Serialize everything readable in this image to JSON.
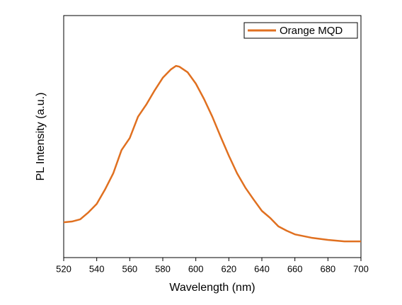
{
  "chart_data": {
    "type": "line",
    "x_label": "Wavelength (nm)",
    "y_label": "PL Intensity (a.u.)",
    "x": [
      520,
      525,
      530,
      535,
      540,
      545,
      550,
      555,
      560,
      565,
      570,
      575,
      580,
      585,
      588,
      590,
      595,
      600,
      605,
      610,
      615,
      620,
      625,
      630,
      635,
      640,
      645,
      650,
      655,
      660,
      670,
      680,
      690,
      700
    ],
    "series": [
      {
        "name": "Orange MQD",
        "color": "#e07020",
        "values": [
          0.146,
          0.149,
          0.158,
          0.187,
          0.222,
          0.281,
          0.348,
          0.444,
          0.494,
          0.582,
          0.632,
          0.69,
          0.743,
          0.778,
          0.792,
          0.789,
          0.766,
          0.719,
          0.655,
          0.582,
          0.5,
          0.421,
          0.348,
          0.289,
          0.24,
          0.193,
          0.164,
          0.129,
          0.111,
          0.096,
          0.082,
          0.073,
          0.067,
          0.067
        ]
      }
    ],
    "xlim": [
      520,
      700
    ],
    "xticks": [
      520,
      540,
      560,
      580,
      600,
      620,
      640,
      660,
      680,
      700
    ],
    "ylim": [
      0,
      1
    ],
    "legend": "upper-right"
  }
}
